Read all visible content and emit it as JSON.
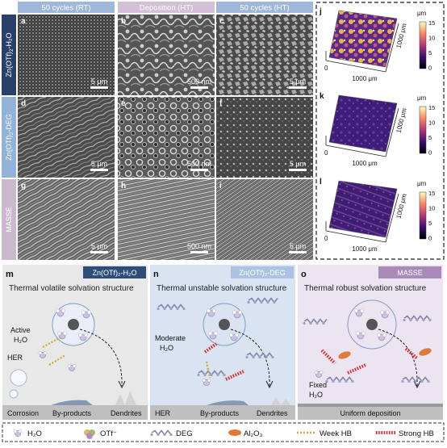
{
  "columns": [
    "50 cycles (RT)",
    "Deposition (HT)",
    "50 cycles (HT)"
  ],
  "rows": [
    {
      "label_main": "Zn(OTf)",
      "label_sub": "2",
      "label_tail": "-H₂O"
    },
    {
      "label_main": "Zn(OTf)",
      "label_sub": "2",
      "label_tail": "-DEG"
    },
    {
      "label_main": "MASSE",
      "label_sub": "",
      "label_tail": ""
    }
  ],
  "sem_panels": [
    {
      "letter": "a",
      "scale": "5 μm"
    },
    {
      "letter": "b",
      "scale": "500 nm"
    },
    {
      "letter": "c",
      "scale": "5 μm"
    },
    {
      "letter": "d",
      "scale": "5 μm"
    },
    {
      "letter": "e",
      "scale": "500 nm"
    },
    {
      "letter": "f",
      "scale": "5 μm"
    },
    {
      "letter": "g",
      "scale": "5 μm"
    },
    {
      "letter": "h",
      "scale": "500 nm"
    },
    {
      "letter": "i",
      "scale": "5 μm"
    }
  ],
  "afm_panels": [
    {
      "letter": "j"
    },
    {
      "letter": "k"
    },
    {
      "letter": "l"
    }
  ],
  "afm_axis": {
    "z_unit": "μm",
    "xy_label": "1000 μm",
    "origin": "0",
    "ticks": [
      "15",
      "10",
      "5",
      "0"
    ]
  },
  "schemes": [
    {
      "letter": "m",
      "badge": "Zn(OTf)₂-H₂O",
      "badge_color": "#2d4e7a",
      "title": "Thermal volatile solvation structure",
      "labels": [
        "Active",
        "H₂O",
        "HER",
        "Corrosion",
        "By-products",
        "Dendrites"
      ]
    },
    {
      "letter": "n",
      "badge": "Zn(OTf)₂-DEG",
      "badge_color": "#aac3e3",
      "title": "Thermal unstable solvation structure",
      "labels": [
        "Moderate",
        "H₂O",
        "HER",
        "By-products",
        "Dendrites"
      ]
    },
    {
      "letter": "o",
      "badge": "MASSE",
      "badge_color": "#a98ab8",
      "title": "Thermal robust solvation structure",
      "labels": [
        "Fixed",
        "H₂O",
        "Uniform deposition"
      ]
    }
  ],
  "legend": [
    {
      "name": "h2o",
      "label": "H₂O"
    },
    {
      "name": "otf",
      "label": "OTf⁻"
    },
    {
      "name": "deg",
      "label": "DEG"
    },
    {
      "name": "al2o3",
      "label": "Al₂O₃"
    },
    {
      "name": "weak-hb",
      "label": "Week HB"
    },
    {
      "name": "strong-hb",
      "label": "Strong HB"
    }
  ],
  "colors": {
    "header": "#9fb8d9",
    "header_mid": "#d3bfd6",
    "row1": "#28406a",
    "row2": "#92b2d8",
    "row3": "#cbb8cf",
    "scheme_m": "#e8e8e8",
    "scheme_n": "#d9e3f1",
    "scheme_o": "#ece4f0"
  }
}
